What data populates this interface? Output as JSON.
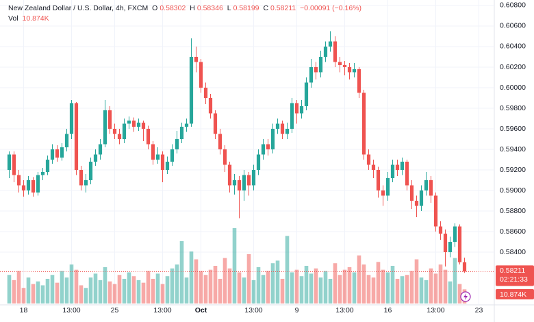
{
  "chart_data": {
    "type": "candlestick",
    "title": "New Zealand Dollar / U.S. Dollar, 4h, FXCM",
    "ohlc_keys": [
      "O",
      "H",
      "L",
      "C"
    ],
    "change": "−0.00091 (−0.16%)",
    "volume_title": "Vol",
    "volume_label": "10.874K",
    "countdown": "02:21:33",
    "up_color": "#26a69a",
    "down_color": "#ef5350",
    "grid": true,
    "ylim": [
      0.57887,
      0.60853
    ],
    "yticks": [
      {
        "value": 0.608,
        "label": "0.60800"
      },
      {
        "value": 0.606,
        "label": "0.60600"
      },
      {
        "value": 0.604,
        "label": "0.60400"
      },
      {
        "value": 0.602,
        "label": "0.60200"
      },
      {
        "value": 0.6,
        "label": "0.60000"
      },
      {
        "value": 0.598,
        "label": "0.59800"
      },
      {
        "value": 0.596,
        "label": "0.59600"
      },
      {
        "value": 0.594,
        "label": "0.59400"
      },
      {
        "value": 0.592,
        "label": "0.59200"
      },
      {
        "value": 0.59,
        "label": "0.59000"
      },
      {
        "value": 0.588,
        "label": "0.58800"
      },
      {
        "value": 0.586,
        "label": "0.58600"
      },
      {
        "value": 0.584,
        "label": "0.58400"
      }
    ],
    "categories": [
      null,
      null,
      null,
      "18",
      null,
      null,
      null,
      null,
      null,
      null,
      null,
      null,
      null,
      "13:00",
      null,
      null,
      null,
      null,
      null,
      null,
      null,
      null,
      "25",
      null,
      null,
      null,
      null,
      null,
      null,
      null,
      null,
      null,
      "13:00",
      null,
      null,
      null,
      null,
      null,
      null,
      null,
      "Oct",
      null,
      null,
      null,
      null,
      null,
      null,
      null,
      null,
      null,
      null,
      "13:00",
      null,
      null,
      null,
      null,
      null,
      null,
      null,
      null,
      "9",
      null,
      null,
      null,
      null,
      null,
      null,
      null,
      null,
      null,
      "13:00",
      null,
      null,
      null,
      null,
      null,
      null,
      null,
      null,
      "16",
      null,
      null,
      null,
      null,
      null,
      null,
      null,
      null,
      null,
      "13:00",
      null,
      null,
      null,
      null,
      null,
      null,
      null,
      null,
      "23",
      null
    ],
    "open": [
      0.592,
      0.5935,
      0.5915,
      0.5905,
      0.59,
      0.591,
      0.5898,
      0.5915,
      0.5918,
      0.593,
      0.594,
      0.5932,
      0.5942,
      0.5955,
      0.5985,
      0.592,
      0.5905,
      0.591,
      0.5928,
      0.5935,
      0.5945,
      0.5978,
      0.596,
      0.5955,
      0.595,
      0.5965,
      0.5968,
      0.5962,
      0.5966,
      0.596,
      0.5945,
      0.593,
      0.5935,
      0.592,
      0.5928,
      0.594,
      0.595,
      0.5962,
      0.5965,
      0.603,
      0.6025,
      0.6,
      0.599,
      0.5975,
      0.5955,
      0.594,
      0.5925,
      0.5905,
      0.591,
      0.59,
      0.5915,
      0.5905,
      0.592,
      0.5935,
      0.5945,
      0.594,
      0.596,
      0.5965,
      0.5955,
      0.596,
      0.5985,
      0.5975,
      0.5982,
      0.6005,
      0.602,
      0.6015,
      0.603,
      0.604,
      0.6045,
      0.6025,
      0.6022,
      0.602,
      0.6015,
      0.6018,
      0.5995,
      0.5935,
      0.5925,
      0.592,
      0.59,
      0.5895,
      0.5912,
      0.5925,
      0.592,
      0.5928,
      0.5905,
      0.589,
      0.5885,
      0.59,
      0.591,
      0.5895,
      0.5865,
      0.5858,
      0.584,
      0.585,
      0.5865,
      0.58302,
      null,
      null,
      null,
      null
    ],
    "high": [
      0.5938,
      0.5938,
      0.592,
      0.591,
      0.5914,
      0.5913,
      0.5918,
      0.5922,
      0.5934,
      0.5945,
      0.5944,
      0.5946,
      0.596,
      0.5988,
      0.5986,
      0.5924,
      0.5916,
      0.5932,
      0.594,
      0.595,
      0.5988,
      0.5982,
      0.5965,
      0.596,
      0.597,
      0.5972,
      0.5971,
      0.597,
      0.5968,
      0.5963,
      0.5948,
      0.5942,
      0.5938,
      0.5933,
      0.5945,
      0.5958,
      0.5966,
      0.597,
      0.6048,
      0.604,
      0.6028,
      0.6005,
      0.5994,
      0.5978,
      0.596,
      0.5944,
      0.5928,
      0.5916,
      0.5914,
      0.592,
      0.5918,
      0.5925,
      0.594,
      0.595,
      0.595,
      0.5965,
      0.597,
      0.5968,
      0.5966,
      0.599,
      0.5988,
      0.5988,
      0.601,
      0.6028,
      0.6025,
      0.6036,
      0.6045,
      0.6055,
      0.605,
      0.603,
      0.6026,
      0.6024,
      0.6024,
      0.602,
      0.5998,
      0.594,
      0.593,
      0.5923,
      0.5905,
      0.5918,
      0.593,
      0.593,
      0.5932,
      0.593,
      0.591,
      0.5895,
      0.5905,
      0.5918,
      0.5914,
      0.5898,
      0.587,
      0.5862,
      0.5855,
      0.5868,
      0.5867,
      0.58346,
      null,
      null,
      null,
      null
    ],
    "low": [
      0.5912,
      0.5908,
      0.5898,
      0.5894,
      0.5896,
      0.5894,
      0.5895,
      0.591,
      0.5915,
      0.5926,
      0.5928,
      0.5929,
      0.5938,
      0.595,
      0.5915,
      0.59,
      0.5898,
      0.5906,
      0.5924,
      0.593,
      0.5942,
      0.5955,
      0.595,
      0.5945,
      0.5946,
      0.596,
      0.5957,
      0.5958,
      0.5948,
      0.594,
      0.5925,
      0.5926,
      0.5908,
      0.5916,
      0.5924,
      0.5936,
      0.5946,
      0.5957,
      0.5962,
      0.6015,
      0.5995,
      0.5984,
      0.597,
      0.595,
      0.5935,
      0.5918,
      0.5898,
      0.5896,
      0.5873,
      0.589,
      0.5895,
      0.59,
      0.5915,
      0.593,
      0.5934,
      0.5936,
      0.5955,
      0.595,
      0.595,
      0.5956,
      0.5965,
      0.597,
      0.5978,
      0.6,
      0.6008,
      0.601,
      0.6025,
      0.6035,
      0.602,
      0.6015,
      0.6012,
      0.6008,
      0.601,
      0.599,
      0.593,
      0.592,
      0.5912,
      0.5893,
      0.5885,
      0.589,
      0.5908,
      0.5914,
      0.5915,
      0.59,
      0.5882,
      0.5874,
      0.588,
      0.5895,
      0.5888,
      0.586,
      0.5852,
      0.5826,
      0.5835,
      0.5845,
      0.5828,
      0.58199,
      null,
      null,
      null,
      null
    ],
    "close": [
      0.5935,
      0.5915,
      0.5905,
      0.59,
      0.591,
      0.5898,
      0.5915,
      0.5918,
      0.593,
      0.594,
      0.5932,
      0.5942,
      0.5955,
      0.5985,
      0.592,
      0.5905,
      0.591,
      0.5928,
      0.5935,
      0.5945,
      0.5978,
      0.596,
      0.5955,
      0.595,
      0.5965,
      0.5968,
      0.5962,
      0.5966,
      0.596,
      0.5945,
      0.593,
      0.5935,
      0.592,
      0.5928,
      0.594,
      0.595,
      0.5962,
      0.5965,
      0.603,
      0.6025,
      0.6,
      0.599,
      0.5975,
      0.5955,
      0.594,
      0.5925,
      0.5905,
      0.591,
      0.59,
      0.5915,
      0.5905,
      0.592,
      0.5935,
      0.5945,
      0.594,
      0.596,
      0.5965,
      0.5955,
      0.596,
      0.5985,
      0.5975,
      0.5982,
      0.6005,
      0.602,
      0.6015,
      0.603,
      0.604,
      0.6045,
      0.6025,
      0.6022,
      0.602,
      0.6015,
      0.6018,
      0.5995,
      0.5935,
      0.5925,
      0.592,
      0.59,
      0.5895,
      0.5912,
      0.5925,
      0.592,
      0.5928,
      0.5905,
      0.589,
      0.5885,
      0.59,
      0.591,
      0.5895,
      0.5865,
      0.5858,
      0.584,
      0.585,
      0.5865,
      0.58302,
      0.58211,
      null,
      null,
      null,
      null
    ],
    "volume": [
      22,
      18,
      25,
      12,
      20,
      15,
      17,
      14,
      19,
      22,
      16,
      25,
      20,
      30,
      26,
      14,
      12,
      20,
      23,
      18,
      28,
      17,
      15,
      22,
      19,
      24,
      21,
      18,
      16,
      25,
      19,
      23,
      15,
      21,
      27,
      30,
      48,
      20,
      40,
      34,
      25,
      22,
      26,
      29,
      19,
      35,
      27,
      58,
      24,
      20,
      38,
      18,
      28,
      22,
      25,
      31,
      33,
      19,
      52,
      24,
      26,
      21,
      29,
      23,
      27,
      20,
      25,
      19,
      31,
      22,
      26,
      28,
      24,
      37,
      30,
      22,
      20,
      32,
      26,
      24,
      29,
      19,
      21,
      22,
      25,
      34,
      20,
      18,
      27,
      23,
      30,
      26,
      17,
      35,
      15,
      10.874,
      null,
      null,
      null,
      null
    ]
  }
}
